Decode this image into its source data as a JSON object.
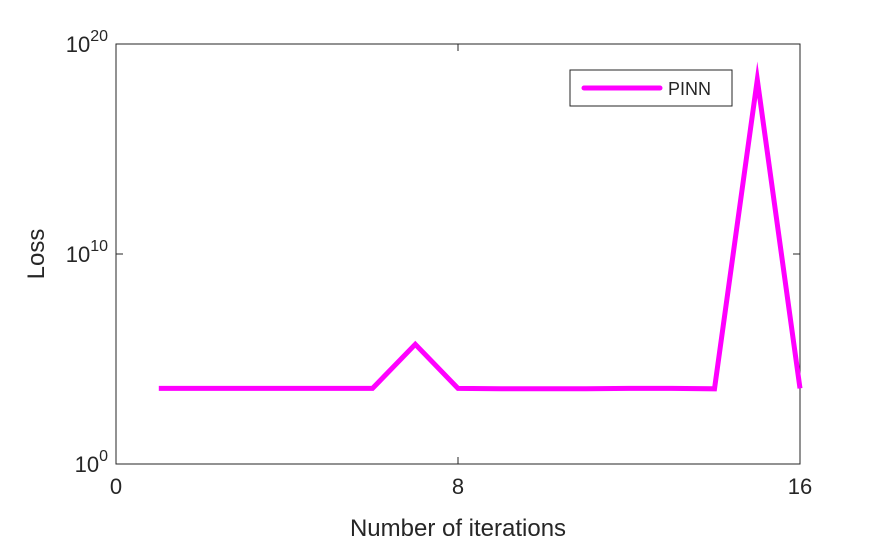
{
  "chart_data": {
    "type": "line",
    "xlabel": "Number of iterations",
    "ylabel": "Loss",
    "xlim": [
      0,
      16
    ],
    "ylim": [
      1,
      1e+20
    ],
    "yscale": "log",
    "x_ticks": [
      {
        "value": 0,
        "label": "0"
      },
      {
        "value": 8,
        "label": "8"
      },
      {
        "value": 16,
        "label": "16"
      }
    ],
    "y_ticks": [
      {
        "value": 1,
        "base": "10",
        "exp": "0"
      },
      {
        "value": 10000000000.0,
        "base": "10",
        "exp": "10"
      },
      {
        "value": 1e+20,
        "base": "10",
        "exp": "20"
      }
    ],
    "grid": false,
    "legend_position": "top-right",
    "series": [
      {
        "name": "PINN",
        "color": "#ff00ff",
        "x": [
          1,
          2,
          3,
          4,
          5,
          6,
          7,
          8,
          9,
          10,
          11,
          12,
          13,
          14,
          15,
          16
        ],
        "y": [
          4000.0,
          4000.0,
          4000.0,
          4000.0,
          4000.0,
          4000.0,
          500000.0,
          4000.0,
          3800.0,
          3800.0,
          3800.0,
          4000.0,
          4000.0,
          3800.0,
          2e+18,
          4000.0
        ]
      }
    ]
  }
}
